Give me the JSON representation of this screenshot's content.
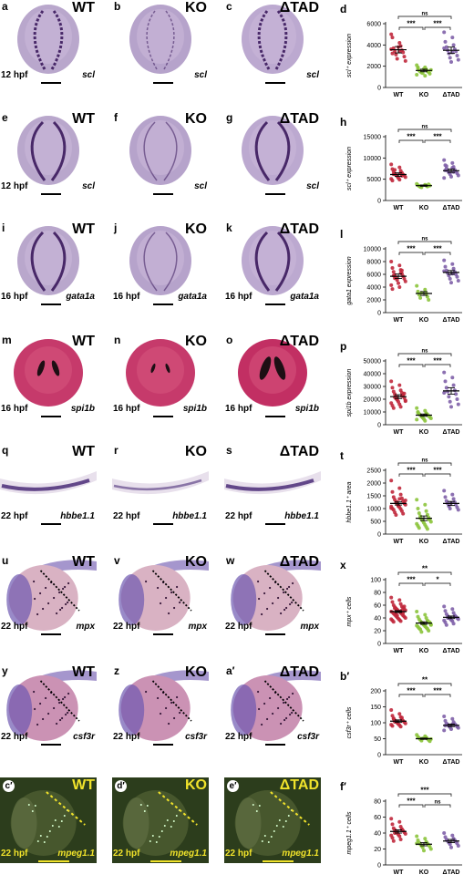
{
  "rows": [
    {
      "panels": [
        {
          "letter": "a",
          "genotype": "WT",
          "stage": "12 hpf",
          "gene": "scl"
        },
        {
          "letter": "b",
          "genotype": "KO",
          "stage": "12 hpf",
          "gene": "scl"
        },
        {
          "letter": "c",
          "genotype": "ΔTAD",
          "stage": "12 hpf",
          "gene": "scl"
        }
      ],
      "chart_letter": "d"
    },
    {
      "panels": [
        {
          "letter": "e",
          "genotype": "WT",
          "stage": "12 hpf",
          "gene": "scl"
        },
        {
          "letter": "f",
          "genotype": "KO",
          "stage": "12 hpf",
          "gene": "scl"
        },
        {
          "letter": "g",
          "genotype": "ΔTAD",
          "stage": "12 hpf",
          "gene": "scl"
        }
      ],
      "chart_letter": "h"
    },
    {
      "panels": [
        {
          "letter": "i",
          "genotype": "WT",
          "stage": "16 hpf",
          "gene": "gata1a"
        },
        {
          "letter": "j",
          "genotype": "KO",
          "stage": "16 hpf",
          "gene": "gata1a"
        },
        {
          "letter": "k",
          "genotype": "ΔTAD",
          "stage": "16 hpf",
          "gene": "gata1a"
        }
      ],
      "chart_letter": "l"
    },
    {
      "panels": [
        {
          "letter": "m",
          "genotype": "WT",
          "stage": "16 hpf",
          "gene": "spi1b"
        },
        {
          "letter": "n",
          "genotype": "KO",
          "stage": "16 hpf",
          "gene": "spi1b"
        },
        {
          "letter": "o",
          "genotype": "ΔTAD",
          "stage": "16 hpf",
          "gene": "spi1b"
        }
      ],
      "chart_letter": "p"
    },
    {
      "panels": [
        {
          "letter": "q",
          "genotype": "WT",
          "stage": "22 hpf",
          "gene": "hbbe1.1"
        },
        {
          "letter": "r",
          "genotype": "KO",
          "stage": "22 hpf",
          "gene": "hbbe1.1"
        },
        {
          "letter": "s",
          "genotype": "ΔTAD",
          "stage": "22 hpf",
          "gene": "hbbe1.1"
        }
      ],
      "chart_letter": "t"
    },
    {
      "panels": [
        {
          "letter": "u",
          "genotype": "WT",
          "stage": "22 hpf",
          "gene": "mpx"
        },
        {
          "letter": "v",
          "genotype": "KO",
          "stage": "22 hpf",
          "gene": "mpx"
        },
        {
          "letter": "w",
          "genotype": "ΔTAD",
          "stage": "22 hpf",
          "gene": "mpx"
        }
      ],
      "chart_letter": "x"
    },
    {
      "panels": [
        {
          "letter": "y",
          "genotype": "WT",
          "stage": "22 hpf",
          "gene": "csf3r"
        },
        {
          "letter": "z",
          "genotype": "KO",
          "stage": "22 hpf",
          "gene": "csf3r"
        },
        {
          "letter": "a′",
          "genotype": "ΔTAD",
          "stage": "22 hpf",
          "gene": "csf3r"
        }
      ],
      "chart_letter": "b′"
    },
    {
      "panels": [
        {
          "letter": "c′",
          "genotype": "WT",
          "stage": "22 hpf",
          "gene": "mpeg1.1"
        },
        {
          "letter": "d′",
          "genotype": "KO",
          "stage": "22 hpf",
          "gene": "mpeg1.1"
        },
        {
          "letter": "e′",
          "genotype": "ΔTAD",
          "stage": "22 hpf",
          "gene": "mpeg1.1"
        }
      ],
      "chart_letter": "f′"
    }
  ],
  "colors": {
    "WT": "#c0283c",
    "KO": "#8cc43c",
    "ΔTAD": "#8060a8",
    "mean_bar": "#000000",
    "fluorescent_label": "#f1e32b"
  },
  "chart_data": [
    {
      "panel": "d",
      "type": "scatter",
      "categories": [
        "WT",
        "KO",
        "ΔTAD"
      ],
      "ylabel": "scl⁺ expression",
      "ylim": [
        0,
        6000
      ],
      "yticks": [
        0,
        2000,
        4000,
        6000
      ],
      "series": [
        {
          "name": "WT",
          "mean": 3550,
          "sem": 300,
          "values": [
            5000,
            4200,
            4700,
            3900,
            3700,
            3500,
            3400,
            3300,
            3100,
            2900,
            2700,
            2500,
            3800,
            3600,
            3400,
            3200
          ]
        },
        {
          "name": "KO",
          "mean": 1600,
          "sem": 120,
          "values": [
            2100,
            1900,
            1800,
            1700,
            1600,
            1550,
            1500,
            1450,
            1400,
            1300,
            1350,
            1650,
            1750,
            1200,
            1100,
            1900
          ]
        },
        {
          "name": "ΔTAD",
          "mean": 3500,
          "sem": 300,
          "values": [
            5200,
            4700,
            4300,
            4000,
            3800,
            3600,
            3500,
            3400,
            3200,
            3000,
            2800,
            2600,
            2400,
            3700,
            3300
          ]
        }
      ],
      "comparisons": [
        {
          "pair": [
            "WT",
            "KO"
          ],
          "label": "***"
        },
        {
          "pair": [
            "KO",
            "ΔTAD"
          ],
          "label": "***"
        },
        {
          "pair": [
            "WT",
            "ΔTAD"
          ],
          "label": "ns"
        }
      ]
    },
    {
      "panel": "h",
      "type": "scatter",
      "categories": [
        "WT",
        "KO",
        "ΔTAD"
      ],
      "ylabel": "scl⁺ expression",
      "ylim": [
        0,
        15000
      ],
      "yticks": [
        0,
        5000,
        10000,
        15000
      ],
      "series": [
        {
          "name": "WT",
          "mean": 6100,
          "sem": 400,
          "values": [
            8500,
            7800,
            7400,
            7000,
            6800,
            6500,
            6300,
            6100,
            6000,
            5900,
            5700,
            5500,
            5300,
            5100,
            4900,
            4700,
            6400,
            6200,
            5800,
            7200
          ]
        },
        {
          "name": "KO",
          "mean": 3500,
          "sem": 150,
          "values": [
            3900,
            3700,
            3600,
            3500,
            3400,
            3300,
            3200,
            3800,
            3100,
            3500
          ]
        },
        {
          "name": "ΔTAD",
          "mean": 7000,
          "sem": 400,
          "values": [
            9500,
            8800,
            8300,
            7900,
            7500,
            7200,
            7000,
            6800,
            6600,
            6400,
            6200,
            5900,
            5600,
            5300,
            7700,
            7100,
            6700,
            8100
          ]
        }
      ],
      "comparisons": [
        {
          "pair": [
            "WT",
            "KO"
          ],
          "label": "***"
        },
        {
          "pair": [
            "KO",
            "ΔTAD"
          ],
          "label": "***"
        },
        {
          "pair": [
            "WT",
            "ΔTAD"
          ],
          "label": "ns"
        }
      ]
    },
    {
      "panel": "l",
      "type": "scatter",
      "categories": [
        "WT",
        "KO",
        "ΔTAD"
      ],
      "ylabel": "gata1 expression",
      "ylim": [
        0,
        10000
      ],
      "yticks": [
        0,
        2000,
        4000,
        6000,
        8000,
        10000
      ],
      "series": [
        {
          "name": "WT",
          "mean": 5700,
          "sem": 350,
          "values": [
            8000,
            7400,
            7000,
            6700,
            6400,
            6100,
            5900,
            5700,
            5500,
            5300,
            5100,
            4900,
            4600,
            4300,
            4000,
            3700,
            6200,
            5800,
            6600,
            5400
          ]
        },
        {
          "name": "KO",
          "mean": 3000,
          "sem": 300,
          "values": [
            4200,
            3600,
            3300,
            3000,
            2800,
            2500,
            2300,
            2000,
            3100
          ]
        },
        {
          "name": "ΔTAD",
          "mean": 6300,
          "sem": 300,
          "values": [
            8200,
            7600,
            7200,
            6900,
            6600,
            6400,
            6200,
            6000,
            5800,
            5600,
            5300,
            5000,
            4700,
            6500,
            6100
          ]
        }
      ],
      "comparisons": [
        {
          "pair": [
            "WT",
            "KO"
          ],
          "label": "***"
        },
        {
          "pair": [
            "KO",
            "ΔTAD"
          ],
          "label": "***"
        },
        {
          "pair": [
            "WT",
            "ΔTAD"
          ],
          "label": "ns"
        }
      ]
    },
    {
      "panel": "p",
      "type": "scatter",
      "categories": [
        "WT",
        "KO",
        "ΔTAD"
      ],
      "ylabel": "spi1b expression",
      "ylim": [
        0,
        50000
      ],
      "yticks": [
        0,
        10000,
        20000,
        30000,
        40000,
        50000
      ],
      "series": [
        {
          "name": "WT",
          "mean": 22000,
          "sem": 1500,
          "values": [
            34000,
            31000,
            29000,
            27000,
            26000,
            25000,
            24000,
            23000,
            22000,
            21000,
            20000,
            19000,
            18000,
            17000,
            16000,
            15000,
            14000,
            13000,
            22500,
            21500,
            23500,
            20500,
            24500,
            19500,
            18500
          ]
        },
        {
          "name": "KO",
          "mean": 7500,
          "sem": 900,
          "values": [
            13000,
            11000,
            10000,
            9000,
            8500,
            8000,
            7500,
            7000,
            6500,
            6000,
            5500,
            5000,
            4500,
            4000,
            3000,
            9500,
            8200
          ]
        },
        {
          "name": "ΔTAD",
          "mean": 26500,
          "sem": 2500,
          "values": [
            41000,
            37000,
            34000,
            31000,
            29000,
            27000,
            26000,
            24000,
            22000,
            20000,
            18000,
            16000,
            14000,
            25000
          ]
        }
      ],
      "comparisons": [
        {
          "pair": [
            "WT",
            "KO"
          ],
          "label": "***"
        },
        {
          "pair": [
            "KO",
            "ΔTAD"
          ],
          "label": "***"
        },
        {
          "pair": [
            "WT",
            "ΔTAD"
          ],
          "label": "ns"
        }
      ]
    },
    {
      "panel": "t",
      "type": "scatter",
      "categories": [
        "WT",
        "KO",
        "ΔTAD"
      ],
      "ylabel": "hbbe1.1⁺ area",
      "ylim": [
        0,
        2500
      ],
      "yticks": [
        0,
        500,
        1000,
        1500,
        2000,
        2500
      ],
      "series": [
        {
          "name": "WT",
          "mean": 1200,
          "sem": 60,
          "values": [
            2100,
            1800,
            1650,
            1550,
            1450,
            1400,
            1350,
            1300,
            1250,
            1200,
            1180,
            1150,
            1100,
            1080,
            1050,
            1000,
            980,
            950,
            900,
            850,
            800,
            750,
            1220,
            1260,
            1320,
            1120,
            1020,
            1380
          ]
        },
        {
          "name": "KO",
          "mean": 620,
          "sem": 90,
          "values": [
            1350,
            1150,
            1000,
            900,
            820,
            760,
            700,
            650,
            600,
            560,
            520,
            480,
            440,
            400,
            360,
            320,
            280,
            240,
            200,
            630,
            580
          ]
        },
        {
          "name": "ΔTAD",
          "mean": 1200,
          "sem": 80,
          "values": [
            1700,
            1550,
            1450,
            1380,
            1300,
            1250,
            1200,
            1150,
            1100,
            1050,
            1000,
            950,
            1220
          ]
        }
      ],
      "comparisons": [
        {
          "pair": [
            "WT",
            "KO"
          ],
          "label": "***"
        },
        {
          "pair": [
            "KO",
            "ΔTAD"
          ],
          "label": "***"
        },
        {
          "pair": [
            "WT",
            "ΔTAD"
          ],
          "label": "ns"
        }
      ]
    },
    {
      "panel": "x",
      "type": "scatter",
      "categories": [
        "WT",
        "KO",
        "ΔTAD"
      ],
      "ylabel": "mpx⁺ cells",
      "ylim": [
        0,
        100
      ],
      "yticks": [
        0,
        20,
        40,
        60,
        80,
        100
      ],
      "series": [
        {
          "name": "WT",
          "mean": 50,
          "sem": 1.5,
          "values": [
            72,
            68,
            65,
            62,
            60,
            58,
            57,
            56,
            55,
            54,
            53,
            52,
            51,
            50,
            50,
            49,
            48,
            47,
            46,
            45,
            44,
            43,
            42,
            41,
            40,
            39,
            38,
            37,
            36,
            35,
            34,
            52,
            55,
            48,
            46,
            58,
            44
          ]
        },
        {
          "name": "KO",
          "mean": 32,
          "sem": 2,
          "values": [
            50,
            45,
            42,
            40,
            38,
            36,
            35,
            34,
            33,
            32,
            31,
            30,
            29,
            28,
            27,
            26,
            25,
            24,
            23,
            22,
            20,
            18,
            33,
            31,
            29
          ]
        },
        {
          "name": "ΔTAD",
          "mean": 41,
          "sem": 2,
          "values": [
            58,
            54,
            51,
            48,
            46,
            44,
            43,
            42,
            41,
            40,
            39,
            38,
            37,
            36,
            35,
            33,
            31,
            29,
            42,
            40
          ]
        }
      ],
      "comparisons": [
        {
          "pair": [
            "WT",
            "KO"
          ],
          "label": "***"
        },
        {
          "pair": [
            "KO",
            "ΔTAD"
          ],
          "label": "*"
        },
        {
          "pair": [
            "WT",
            "ΔTAD"
          ],
          "label": "**"
        }
      ]
    },
    {
      "panel": "b′",
      "type": "scatter",
      "categories": [
        "WT",
        "KO",
        "ΔTAD"
      ],
      "ylabel": "csf3r⁺ cells",
      "ylim": [
        0,
        200
      ],
      "yticks": [
        0,
        50,
        100,
        150,
        200
      ],
      "series": [
        {
          "name": "WT",
          "mean": 105,
          "sem": 4,
          "values": [
            140,
            128,
            122,
            118,
            114,
            110,
            108,
            106,
            104,
            102,
            100,
            98,
            96,
            94,
            92,
            90,
            88,
            112,
            116,
            103
          ]
        },
        {
          "name": "KO",
          "mean": 50,
          "sem": 2,
          "values": [
            62,
            58,
            56,
            54,
            52,
            50,
            48,
            46,
            44,
            42,
            51,
            49
          ]
        },
        {
          "name": "ΔTAD",
          "mean": 92,
          "sem": 4,
          "values": [
            120,
            112,
            106,
            102,
            98,
            96,
            94,
            92,
            90,
            88,
            86,
            84,
            80,
            76,
            95,
            91
          ]
        }
      ],
      "comparisons": [
        {
          "pair": [
            "WT",
            "KO"
          ],
          "label": "***"
        },
        {
          "pair": [
            "KO",
            "ΔTAD"
          ],
          "label": "***"
        },
        {
          "pair": [
            "WT",
            "ΔTAD"
          ],
          "label": "**"
        }
      ]
    },
    {
      "panel": "f′",
      "type": "scatter",
      "categories": [
        "WT",
        "KO",
        "ΔTAD"
      ],
      "ylabel": "mpeg1.1⁺ cells",
      "ylim": [
        0,
        80
      ],
      "yticks": [
        0,
        20,
        40,
        60,
        80
      ],
      "series": [
        {
          "name": "WT",
          "mean": 42,
          "sem": 2,
          "values": [
            58,
            54,
            51,
            48,
            46,
            45,
            44,
            43,
            42,
            41,
            40,
            39,
            38,
            37,
            36,
            34,
            32,
            30,
            44,
            40
          ]
        },
        {
          "name": "KO",
          "mean": 26,
          "sem": 2,
          "values": [
            36,
            33,
            31,
            29,
            28,
            27,
            26,
            25,
            24,
            23,
            22,
            20,
            18,
            27
          ]
        },
        {
          "name": "ΔTAD",
          "mean": 30,
          "sem": 2,
          "values": [
            40,
            37,
            35,
            33,
            32,
            31,
            30,
            29,
            28,
            27,
            26,
            24,
            22
          ]
        }
      ],
      "comparisons": [
        {
          "pair": [
            "WT",
            "KO"
          ],
          "label": "***"
        },
        {
          "pair": [
            "KO",
            "ΔTAD"
          ],
          "label": "ns"
        },
        {
          "pair": [
            "WT",
            "ΔTAD"
          ],
          "label": "***"
        }
      ]
    }
  ]
}
